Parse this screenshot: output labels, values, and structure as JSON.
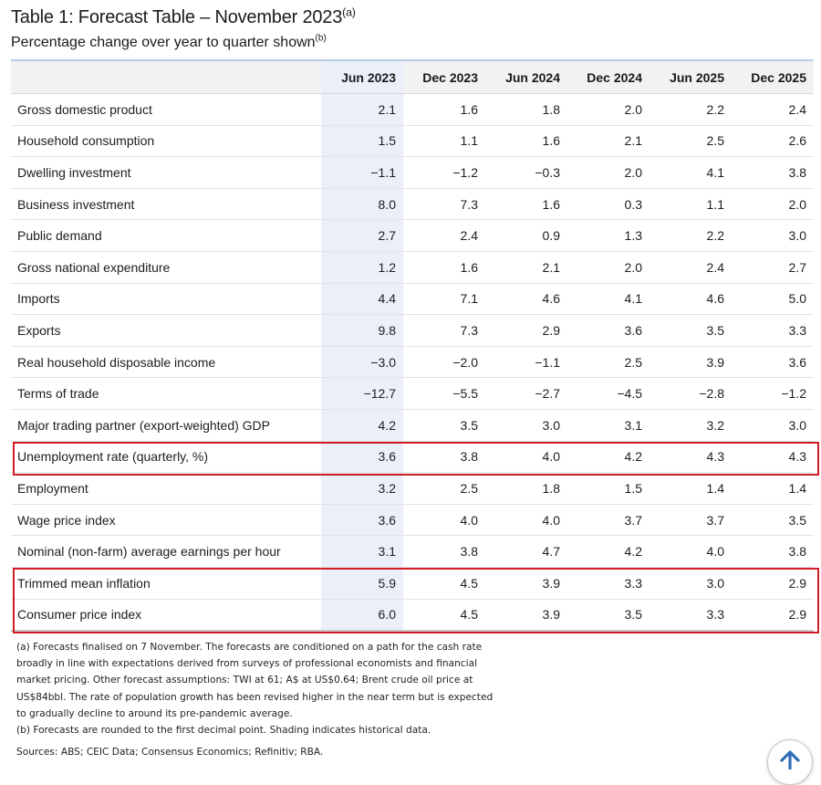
{
  "title": "Table 1: Forecast Table – November 2023",
  "title_note": "(a)",
  "subtitle": "Percentage change over year to quarter shown",
  "subtitle_note": "(b)",
  "columns": [
    "Jun 2023",
    "Dec 2023",
    "Jun 2024",
    "Dec 2024",
    "Jun 2025",
    "Dec 2025"
  ],
  "rows": [
    {
      "label": "Gross domestic product",
      "values": [
        "2.1",
        "1.6",
        "1.8",
        "2.0",
        "2.2",
        "2.4"
      ]
    },
    {
      "label": "Household consumption",
      "values": [
        "1.5",
        "1.1",
        "1.6",
        "2.1",
        "2.5",
        "2.6"
      ]
    },
    {
      "label": "Dwelling investment",
      "values": [
        "−1.1",
        "−1.2",
        "−0.3",
        "2.0",
        "4.1",
        "3.8"
      ]
    },
    {
      "label": "Business investment",
      "values": [
        "8.0",
        "7.3",
        "1.6",
        "0.3",
        "1.1",
        "2.0"
      ]
    },
    {
      "label": "Public demand",
      "values": [
        "2.7",
        "2.4",
        "0.9",
        "1.3",
        "2.2",
        "3.0"
      ]
    },
    {
      "label": "Gross national expenditure",
      "values": [
        "1.2",
        "1.6",
        "2.1",
        "2.0",
        "2.4",
        "2.7"
      ]
    },
    {
      "label": "Imports",
      "values": [
        "4.4",
        "7.1",
        "4.6",
        "4.1",
        "4.6",
        "5.0"
      ]
    },
    {
      "label": "Exports",
      "values": [
        "9.8",
        "7.3",
        "2.9",
        "3.6",
        "3.5",
        "3.3"
      ]
    },
    {
      "label": "Real household disposable income",
      "values": [
        "−3.0",
        "−2.0",
        "−1.1",
        "2.5",
        "3.9",
        "3.6"
      ]
    },
    {
      "label": "Terms of trade",
      "values": [
        "−12.7",
        "−5.5",
        "−2.7",
        "−4.5",
        "−2.8",
        "−1.2"
      ]
    },
    {
      "label": "Major trading partner (export-weighted) GDP",
      "values": [
        "4.2",
        "3.5",
        "3.0",
        "3.1",
        "3.2",
        "3.0"
      ]
    },
    {
      "label": "Unemployment rate (quarterly, %)",
      "values": [
        "3.6",
        "3.8",
        "4.0",
        "4.2",
        "4.3",
        "4.3"
      ]
    },
    {
      "label": "Employment",
      "values": [
        "3.2",
        "2.5",
        "1.8",
        "1.5",
        "1.4",
        "1.4"
      ]
    },
    {
      "label": "Wage price index",
      "values": [
        "3.6",
        "4.0",
        "4.0",
        "3.7",
        "3.7",
        "3.5"
      ]
    },
    {
      "label": "Nominal (non-farm) average earnings per hour",
      "values": [
        "3.1",
        "3.8",
        "4.7",
        "4.2",
        "4.0",
        "3.8"
      ]
    },
    {
      "label": "Trimmed mean inflation",
      "values": [
        "5.9",
        "4.5",
        "3.9",
        "3.3",
        "3.0",
        "2.9"
      ]
    },
    {
      "label": "Consumer price index",
      "values": [
        "6.0",
        "4.5",
        "3.9",
        "3.5",
        "3.3",
        "2.9"
      ]
    }
  ],
  "notes": {
    "a_lines": [
      "(a) Forecasts finalised on 7 November. The forecasts are conditioned on a path for the cash rate",
      "broadly in line with expectations derived from surveys of professional economists and financial",
      "market pricing. Other forecast assumptions: TWI at 61; A$ at US$0.64; Brent crude oil price at",
      "US$84bbl. The rate of population growth has been revised higher in the near term but is expected",
      "to gradually decline to around its pre-pandemic average."
    ],
    "b": "(b) Forecasts are rounded to the first decimal point. Shading indicates historical data."
  },
  "sources": "Sources: ABS; CEIC Data; Consensus Economics; Refinitiv; RBA.",
  "shaded_columns": [
    "Jun 2023"
  ],
  "highlighted_rows": [
    "Unemployment rate (quarterly, %)",
    "Trimmed mean inflation",
    "Consumer price index"
  ],
  "highlight_color": "#d01c24",
  "shade_color": "#eaeff9",
  "scroll_button_icon": "arrow-up-icon"
}
